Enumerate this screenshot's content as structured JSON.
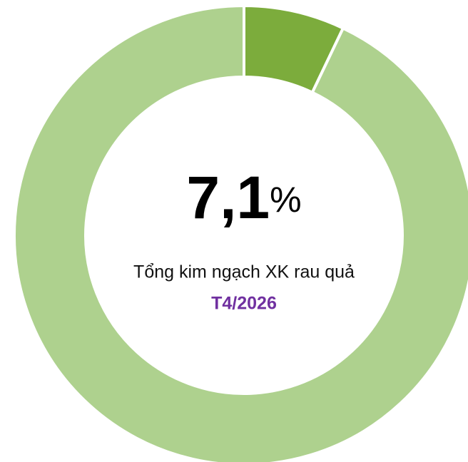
{
  "chart_data": {
    "type": "donut",
    "values": [
      7.1,
      92.9
    ],
    "colors": [
      "#7cac3c",
      "#aed18e"
    ],
    "center_value_label": "7,1",
    "unit": "%",
    "subtitle": "Tổng kim ngạch XK rau quả",
    "period": "T4/2026"
  }
}
